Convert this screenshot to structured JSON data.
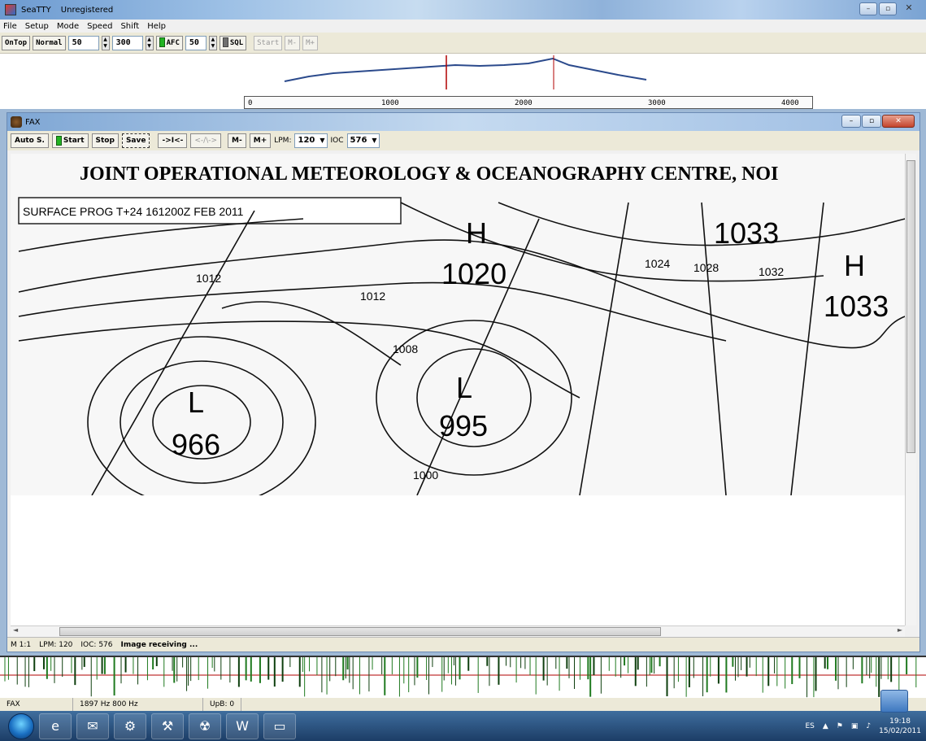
{
  "window": {
    "title": "SeaTTY",
    "status": "Unregistered",
    "min": "–",
    "max": "▫",
    "close": "✕"
  },
  "menu": [
    "File",
    "Setup",
    "Mode",
    "Speed",
    "Shift",
    "Help"
  ],
  "toolbar": {
    "ontop": "OnTop",
    "normal": "Normal",
    "val1": "50",
    "val2": "300",
    "afc": "AFC",
    "val3": "50",
    "sql": "SQL",
    "start": "Start",
    "mminus": "M-",
    "mplus": "M+"
  },
  "scale_ticks": [
    "0",
    "1000",
    "2000",
    "3000",
    "4000"
  ],
  "fax": {
    "title": "FAX",
    "toolbar": {
      "auto": "Auto S.",
      "start": "Start",
      "stop": "Stop",
      "save": "Save",
      "b1": "->I<-",
      "b2": "<-/\\->",
      "mminus": "M-",
      "mplus": "M+",
      "lpm_label": "LPM:",
      "lpm": "120",
      "ioc_label": "IOC",
      "ioc": "576"
    },
    "chart": {
      "header": "JOINT OPERATIONAL METEOROLOGY & OCEANOGRAPHY CENTRE, NOI",
      "label": "SURFACE PROG T+24  161200Z FEB 2011",
      "pressures": [
        "H",
        "1020",
        "1033",
        "H",
        "1033",
        "L",
        "995",
        "L",
        "966",
        "1012",
        "1012",
        "1008",
        "1024",
        "1028",
        "1032",
        "1000"
      ]
    },
    "status": {
      "zoom": "M 1:1",
      "lpm": "LPM: 120",
      "ioc": "IOC: 576",
      "msg": "Image receiving ..."
    }
  },
  "app_status": {
    "mode": "FAX",
    "freqs": "1897 Hz  800 Hz",
    "upb": "UpB: 0"
  },
  "taskbar": {
    "lang": "ES",
    "time": "19:18",
    "date": "15/02/2011"
  }
}
